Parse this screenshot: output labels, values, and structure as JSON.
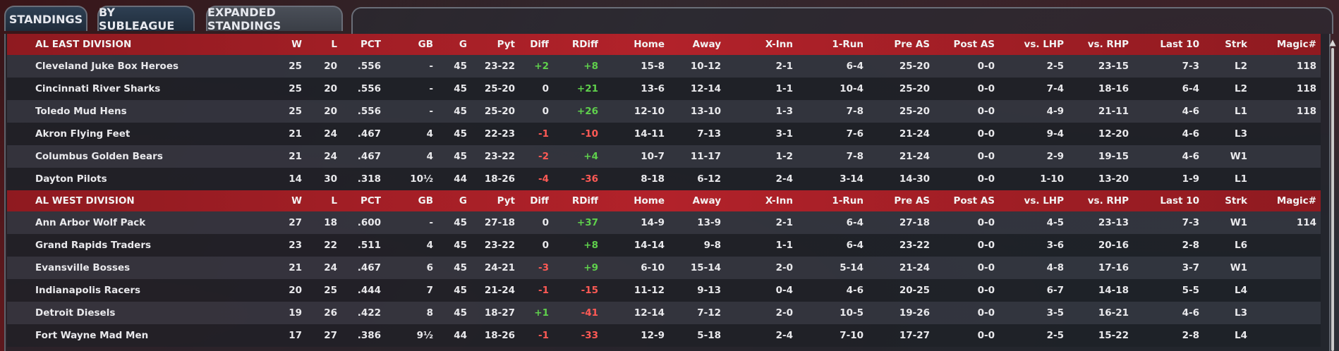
{
  "tabs": [
    {
      "label": "STANDINGS",
      "active": false
    },
    {
      "label": "BY SUBLEAGUE",
      "active": false
    },
    {
      "label": "EXPANDED STANDINGS",
      "active": true
    }
  ],
  "columns": [
    "W",
    "L",
    "PCT",
    "GB",
    "G",
    "Pyt",
    "Diff",
    "RDiff",
    "Home",
    "Away",
    "X-Inn",
    "1-Run",
    "Pre AS",
    "Post AS",
    "vs. LHP",
    "vs. RHP",
    "Last 10",
    "Strk",
    "Magic#"
  ],
  "colors": {
    "positive": "#5fd04c",
    "negative": "#ff5a55",
    "header_red": "#b2222a"
  },
  "divisions": [
    {
      "name": "AL EAST DIVISION",
      "teams": [
        [
          "Cleveland Juke Box Heroes",
          "25",
          "20",
          ".556",
          "-",
          "45",
          "23-22",
          "+2",
          "+8",
          "15-8",
          "10-12",
          "2-1",
          "6-4",
          "25-20",
          "0-0",
          "2-5",
          "23-15",
          "7-3",
          "L2",
          "118"
        ],
        [
          "Cincinnati River Sharks",
          "25",
          "20",
          ".556",
          "-",
          "45",
          "25-20",
          "0",
          "+21",
          "13-6",
          "12-14",
          "1-1",
          "10-4",
          "25-20",
          "0-0",
          "7-4",
          "18-16",
          "6-4",
          "L2",
          "118"
        ],
        [
          "Toledo  Mud Hens",
          "25",
          "20",
          ".556",
          "-",
          "45",
          "25-20",
          "0",
          "+26",
          "12-10",
          "13-10",
          "1-3",
          "7-8",
          "25-20",
          "0-0",
          "4-9",
          "21-11",
          "4-6",
          "L1",
          "118"
        ],
        [
          "Akron  Flying Feet",
          "21",
          "24",
          ".467",
          "4",
          "45",
          "22-23",
          "-1",
          "-10",
          "14-11",
          "7-13",
          "3-1",
          "7-6",
          "21-24",
          "0-0",
          "9-4",
          "12-20",
          "4-6",
          "L3",
          ""
        ],
        [
          "Columbus Golden Bears",
          "21",
          "24",
          ".467",
          "4",
          "45",
          "23-22",
          "-2",
          "+4",
          "10-7",
          "11-17",
          "1-2",
          "7-8",
          "21-24",
          "0-0",
          "2-9",
          "19-15",
          "4-6",
          "W1",
          ""
        ],
        [
          "Dayton Pilots",
          "14",
          "30",
          ".318",
          "10½",
          "44",
          "18-26",
          "-4",
          "-36",
          "8-18",
          "6-12",
          "2-4",
          "3-14",
          "14-30",
          "0-0",
          "1-10",
          "13-20",
          "1-9",
          "L1",
          ""
        ]
      ]
    },
    {
      "name": "AL WEST DIVISION",
      "teams": [
        [
          "Ann Arbor Wolf Pack",
          "27",
          "18",
          ".600",
          "-",
          "45",
          "27-18",
          "0",
          "+37",
          "14-9",
          "13-9",
          "2-1",
          "6-4",
          "27-18",
          "0-0",
          "4-5",
          "23-13",
          "7-3",
          "W1",
          "114"
        ],
        [
          "Grand Rapids Traders",
          "23",
          "22",
          ".511",
          "4",
          "45",
          "23-22",
          "0",
          "+8",
          "14-14",
          "9-8",
          "1-1",
          "6-4",
          "23-22",
          "0-0",
          "3-6",
          "20-16",
          "2-8",
          "L6",
          ""
        ],
        [
          "Evansville Bosses",
          "21",
          "24",
          ".467",
          "6",
          "45",
          "24-21",
          "-3",
          "+9",
          "6-10",
          "15-14",
          "2-0",
          "5-14",
          "21-24",
          "0-0",
          "4-8",
          "17-16",
          "3-7",
          "W1",
          ""
        ],
        [
          "Indianapolis Racers",
          "20",
          "25",
          ".444",
          "7",
          "45",
          "21-24",
          "-1",
          "-15",
          "11-12",
          "9-13",
          "0-4",
          "4-6",
          "20-25",
          "0-0",
          "6-7",
          "14-18",
          "5-5",
          "L4",
          ""
        ],
        [
          "Detroit Diesels",
          "19",
          "26",
          ".422",
          "8",
          "45",
          "18-27",
          "+1",
          "-41",
          "12-14",
          "7-12",
          "2-0",
          "10-5",
          "19-26",
          "0-0",
          "3-5",
          "16-21",
          "4-6",
          "L3",
          ""
        ],
        [
          "Fort Wayne Mad Men",
          "17",
          "27",
          ".386",
          "9½",
          "44",
          "18-26",
          "-1",
          "-33",
          "12-9",
          "5-18",
          "2-4",
          "7-10",
          "17-27",
          "0-0",
          "2-5",
          "15-22",
          "2-8",
          "L4",
          ""
        ]
      ]
    }
  ]
}
